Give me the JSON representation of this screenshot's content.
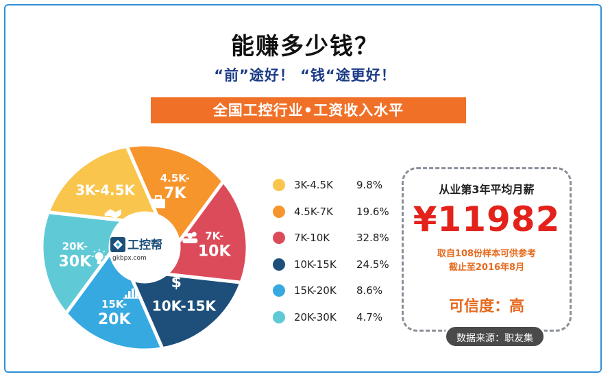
{
  "header": {
    "title": "能赚多少钱？",
    "subtitle": "“前”途好！ “钱“途更好！",
    "banner": "全国工控行业•工资收入水平"
  },
  "chart_data": {
    "type": "pie",
    "categories": [
      "3K-4.5K",
      "4.5K-7K",
      "7K-10K",
      "10K-15K",
      "15K-20K",
      "20K-30K"
    ],
    "values": [
      9.8,
      19.6,
      32.8,
      24.5,
      8.6,
      4.7
    ],
    "value_labels": [
      "9.8%",
      "19.6%",
      "32.8%",
      "24.5%",
      "8.6%",
      "4.7%"
    ],
    "segment_labels": [
      [
        "3K-4.5K"
      ],
      [
        "4.5K-",
        "7K"
      ],
      [
        "7K-",
        "10K"
      ],
      [
        "10K-15K"
      ],
      [
        "15K-",
        "20K"
      ],
      [
        "20K-",
        "30K"
      ]
    ],
    "colors": [
      "#f9c54c",
      "#f7952d",
      "#dc4b5a",
      "#1d4f7a",
      "#36a9e1",
      "#5fcad6"
    ],
    "segment_icons": [
      "handshake-icon",
      "briefcase-icon",
      "people-icon",
      "dollar-icon",
      "bar-chart-icon",
      "lightbulb-icon"
    ],
    "logo": {
      "name": "工控帮",
      "domain": "gkbpx.com"
    }
  },
  "salary_card": {
    "title": "从业第3年平均月薪",
    "amount": "¥11982",
    "note_1": "取自108份样本可供参考",
    "note_2": "截止至2016年8月",
    "reliability": "可信度：高"
  },
  "source": "数据来源：职友集"
}
